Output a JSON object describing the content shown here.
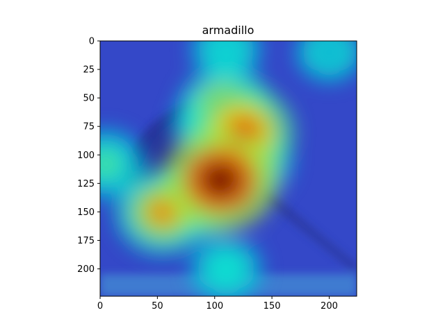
{
  "chart_data": {
    "type": "heatmap",
    "title": "armadillo",
    "xlabel": "",
    "ylabel": "",
    "xlim": [
      0,
      224
    ],
    "ylim": [
      224,
      0
    ],
    "x_ticks": [
      0,
      50,
      100,
      150,
      200
    ],
    "y_ticks": [
      0,
      25,
      50,
      75,
      100,
      125,
      150,
      175,
      200
    ],
    "colormap": "jet",
    "overlay_on_image": true,
    "grid": false,
    "hotspots": [
      {
        "x": 105,
        "y": 122,
        "intensity": 1.0
      },
      {
        "x": 125,
        "y": 80,
        "intensity": 0.82
      },
      {
        "x": 110,
        "y": 60,
        "intensity": 0.7
      },
      {
        "x": 55,
        "y": 150,
        "intensity": 0.72
      },
      {
        "x": 85,
        "y": 140,
        "intensity": 0.6
      },
      {
        "x": 130,
        "y": 105,
        "intensity": 0.6
      },
      {
        "x": 95,
        "y": 75,
        "intensity": 0.42
      },
      {
        "x": 5,
        "y": 108,
        "intensity": 0.45
      },
      {
        "x": 110,
        "y": 200,
        "intensity": 0.38
      },
      {
        "x": 110,
        "y": 8,
        "intensity": 0.35
      },
      {
        "x": 200,
        "y": 10,
        "intensity": 0.3
      }
    ]
  },
  "colors": {
    "low": "#1e32c8",
    "mid": "#2ad2e0",
    "high": "#e01818",
    "axes": "#000000",
    "background": "#ffffff"
  }
}
